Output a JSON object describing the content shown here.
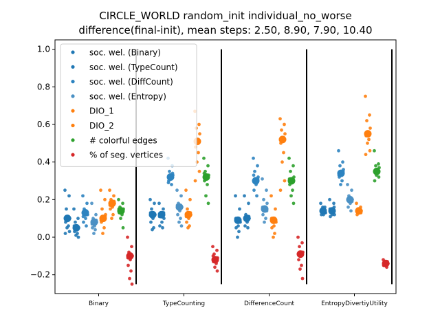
{
  "chart_data": {
    "type": "scatter",
    "title_line1": "CIRCLE_WORLD random_init individual_no_worse",
    "title_line2": "difference(final-init), mean steps: 2.50, 8.90, 7.90, 10.40",
    "categories": [
      "Binary",
      "TypeCounting",
      "DifferenceCount",
      "EntropyDivertiyUtility"
    ],
    "ylim": [
      -0.3,
      1.05
    ],
    "yticks": [
      -0.2,
      0.0,
      0.2,
      0.4,
      0.6,
      0.8,
      1.0
    ],
    "ytick_labels": [
      "−0.2",
      "0.0",
      "0.2",
      "0.4",
      "0.6",
      "0.8",
      "1.0"
    ],
    "separators": {
      "ymin": -0.25,
      "ymax": 1.0
    },
    "legend_position": "upper-left",
    "series": [
      {
        "name": "soc. wel. (Binary)",
        "color": "#1f77b4",
        "means": [
          0.1,
          0.12,
          0.09,
          0.14
        ],
        "points": [
          [
            0.25,
            0.22,
            0.15,
            0.1,
            0.1,
            0.08,
            0.06,
            0.05,
            0.03,
            0.02
          ],
          [
            0.2,
            0.18,
            0.15,
            0.12,
            0.1,
            0.08,
            0.05,
            0.04,
            0.12,
            0.13
          ],
          [
            0.22,
            0.15,
            0.1,
            0.08,
            0.06,
            0.05,
            0.03,
            0.0,
            0.09,
            0.1
          ],
          [
            0.18,
            0.16,
            0.14,
            0.13,
            0.12,
            0.12,
            0.15,
            0.16,
            0.13,
            0.14
          ]
        ]
      },
      {
        "name": "soc. wel. (TypeCount)",
        "color": "#1f77b4",
        "means": [
          0.05,
          0.12,
          0.1,
          0.14
        ],
        "points": [
          [
            0.15,
            0.1,
            0.08,
            0.05,
            0.04,
            0.03,
            0.02,
            0.01,
            0.0,
            0.06
          ],
          [
            0.18,
            0.15,
            0.12,
            0.1,
            0.08,
            0.06,
            0.05,
            0.12,
            0.13,
            0.11
          ],
          [
            0.22,
            0.18,
            0.12,
            0.1,
            0.08,
            0.06,
            0.05,
            0.09,
            0.11,
            0.1
          ],
          [
            0.2,
            0.18,
            0.15,
            0.12,
            0.12,
            0.11,
            0.14,
            0.13,
            0.16,
            0.15
          ]
        ]
      },
      {
        "name": "soc. wel. (DiffCount)",
        "color": "#2c83c0",
        "means": [
          0.13,
          0.32,
          0.3,
          0.34
        ],
        "points": [
          [
            0.22,
            0.18,
            0.15,
            0.12,
            0.1,
            0.08,
            0.06,
            0.14,
            0.13,
            0.11
          ],
          [
            0.42,
            0.38,
            0.35,
            0.33,
            0.32,
            0.3,
            0.28,
            0.31,
            0.34,
            0.29
          ],
          [
            0.42,
            0.38,
            0.35,
            0.32,
            0.28,
            0.25,
            0.22,
            0.3,
            0.31,
            0.33
          ],
          [
            0.46,
            0.4,
            0.38,
            0.36,
            0.34,
            0.32,
            0.3,
            0.28,
            0.35,
            0.33
          ]
        ]
      },
      {
        "name": "soc. wel. (Entropy)",
        "color": "#4a90c4",
        "means": [
          0.08,
          0.16,
          0.15,
          0.2
        ],
        "points": [
          [
            0.18,
            0.12,
            0.1,
            0.08,
            0.06,
            0.05,
            0.04,
            0.02,
            0.09,
            0.07
          ],
          [
            0.25,
            0.22,
            0.18,
            0.16,
            0.14,
            0.12,
            0.1,
            0.08,
            0.06,
            0.17
          ],
          [
            0.31,
            0.25,
            0.2,
            0.18,
            0.15,
            0.12,
            0.1,
            0.08,
            0.14,
            0.16
          ],
          [
            0.28,
            0.25,
            0.22,
            0.2,
            0.18,
            0.16,
            0.14,
            0.21,
            0.19,
            0.2
          ]
        ]
      },
      {
        "name": "DIO_1",
        "color": "#ff7f0e",
        "means": [
          0.1,
          0.12,
          0.09,
          0.14
        ],
        "points": [
          [
            0.25,
            0.2,
            0.15,
            0.12,
            0.1,
            0.08,
            0.05,
            0.02,
            0.11,
            0.09
          ],
          [
            0.25,
            0.2,
            0.15,
            0.12,
            0.1,
            0.08,
            0.06,
            0.05,
            0.13,
            0.11
          ],
          [
            0.22,
            0.15,
            0.1,
            0.08,
            0.06,
            0.05,
            0.02,
            0.0,
            0.09,
            0.1
          ],
          [
            0.18,
            0.16,
            0.15,
            0.14,
            0.13,
            0.12,
            0.14,
            0.15,
            0.13,
            0.14
          ]
        ]
      },
      {
        "name": "DIO_2",
        "color": "#ff7f0e",
        "means": [
          0.18,
          0.51,
          0.52,
          0.55
        ],
        "points": [
          [
            0.25,
            0.22,
            0.2,
            0.18,
            0.16,
            0.15,
            0.12,
            0.1,
            0.19,
            0.17
          ],
          [
            0.67,
            0.6,
            0.58,
            0.55,
            0.52,
            0.48,
            0.45,
            0.4,
            0.35,
            0.3
          ],
          [
            0.63,
            0.6,
            0.57,
            0.55,
            0.52,
            0.5,
            0.45,
            0.4,
            0.3,
            0.25
          ],
          [
            0.75,
            0.65,
            0.62,
            0.58,
            0.56,
            0.54,
            0.52,
            0.5,
            0.46,
            0.44
          ]
        ]
      },
      {
        "name": "# colorful edges",
        "color": "#2ca02c",
        "means": [
          0.14,
          0.32,
          0.3,
          0.35
        ],
        "points": [
          [
            0.2,
            0.18,
            0.16,
            0.15,
            0.14,
            0.13,
            0.12,
            0.1,
            0.05,
            0.15
          ],
          [
            0.42,
            0.38,
            0.35,
            0.33,
            0.32,
            0.3,
            0.28,
            0.22,
            0.18,
            0.34
          ],
          [
            0.42,
            0.38,
            0.35,
            0.32,
            0.3,
            0.28,
            0.25,
            0.22,
            0.18,
            0.31
          ],
          [
            0.46,
            0.39,
            0.38,
            0.37,
            0.36,
            0.35,
            0.34,
            0.33,
            0.32,
            0.3
          ]
        ]
      },
      {
        "name": "% of seg. vertices",
        "color": "#d62728",
        "means": [
          -0.1,
          -0.12,
          -0.09,
          -0.14
        ],
        "points": [
          [
            0.0,
            -0.05,
            -0.08,
            -0.1,
            -0.12,
            -0.15,
            -0.18,
            -0.22,
            -0.25,
            -0.11
          ],
          [
            -0.05,
            -0.07,
            -0.09,
            -0.11,
            -0.12,
            -0.13,
            -0.14,
            -0.16,
            -0.18,
            -0.1
          ],
          [
            0.0,
            -0.03,
            -0.05,
            -0.08,
            -0.1,
            -0.12,
            -0.15,
            -0.17,
            -0.22,
            -0.09
          ],
          [
            -0.12,
            -0.13,
            -0.14,
            -0.14,
            -0.15,
            -0.15,
            -0.16,
            -0.13,
            -0.14,
            -0.15
          ]
        ]
      }
    ]
  }
}
